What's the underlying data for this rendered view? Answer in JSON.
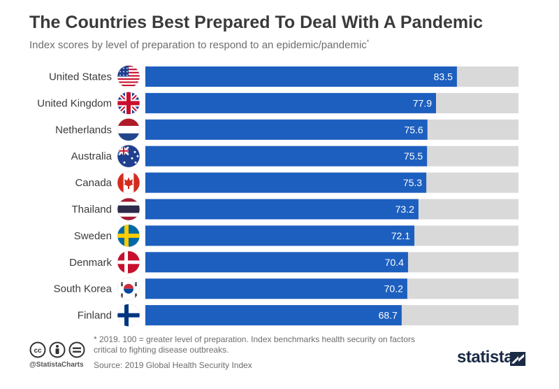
{
  "header": {
    "title": "The Countries Best Prepared To Deal With A Pandemic",
    "subtitle": "Index scores by level of preparation to respond to an epidemic/pandemic",
    "subtitle_mark": "*"
  },
  "chart_data": {
    "type": "bar",
    "orientation": "horizontal",
    "title": "The Countries Best Prepared To Deal With A Pandemic",
    "subtitle": "Index scores by level of preparation to respond to an epidemic/pandemic*",
    "categories": [
      "United States",
      "United Kingdom",
      "Netherlands",
      "Australia",
      "Canada",
      "Thailand",
      "Sweden",
      "Denmark",
      "South Korea",
      "Finland"
    ],
    "values": [
      83.5,
      77.9,
      75.6,
      75.5,
      75.3,
      73.2,
      72.1,
      70.4,
      70.2,
      68.7
    ],
    "xlim": [
      0,
      100
    ],
    "grid": false,
    "data_labels": true,
    "colors": {
      "bar": "#1d5fbf",
      "track": "#d9d9d9",
      "label": "#ffffff"
    },
    "flag_icons": [
      "us-flag-icon",
      "uk-flag-icon",
      "netherlands-flag-icon",
      "australia-flag-icon",
      "canada-flag-icon",
      "thailand-flag-icon",
      "sweden-flag-icon",
      "denmark-flag-icon",
      "south-korea-flag-icon",
      "finland-flag-icon"
    ]
  },
  "footer": {
    "footnote": "* 2019. 100 = greater level of preparation. Index benchmarks health security on factors critical to fighting disease outbreaks.",
    "source": "Source: 2019 Global Health Security Index",
    "handle": "@StatistaCharts",
    "brand": "statista",
    "license_icons": [
      "cc-icon",
      "attribution-icon",
      "equals-icon"
    ]
  }
}
